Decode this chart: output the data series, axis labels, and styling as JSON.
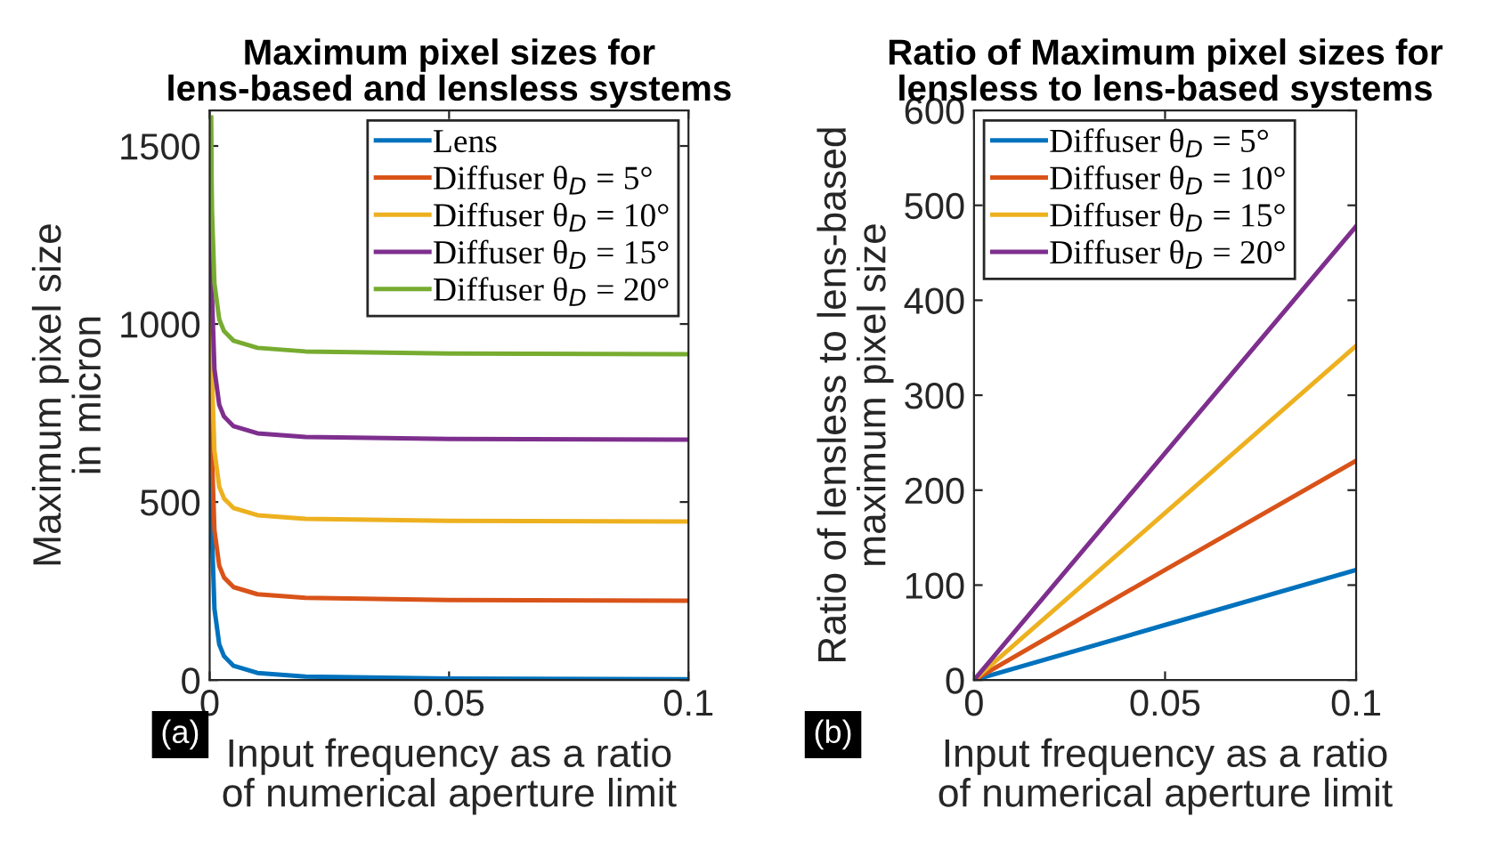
{
  "chart_data": [
    {
      "type": "line",
      "title": "Maximum pixel sizes for\nlens-based and lensless systems",
      "xlabel": "Input frequency as a ratio\nof numerical aperture limit",
      "ylabel": "Maximum pixel size\nin micron",
      "xlim": [
        0,
        0.1
      ],
      "xticks": [
        0,
        0.05,
        0.1
      ],
      "ylim": [
        0,
        1600
      ],
      "yticks": [
        0,
        500,
        1000,
        1500
      ],
      "grid": false,
      "legend": "top right",
      "annotations": [
        "(a)"
      ],
      "series": [
        {
          "name": "Lens",
          "color": "#0072bd",
          "x": [
            0.0003,
            0.0005,
            0.001,
            0.002,
            0.003,
            0.005,
            0.01,
            0.02,
            0.05,
            0.1
          ],
          "values": [
            667,
            400,
            200,
            100,
            67,
            40,
            20,
            10,
            4,
            2
          ]
        },
        {
          "name": "Diffuser θ$_{D}$ = 5°",
          "color": "#d95319",
          "x": [
            0.00015,
            0.0002,
            0.0003,
            0.0005,
            0.001,
            0.002,
            0.003,
            0.005,
            0.01,
            0.02,
            0.05,
            0.1
          ],
          "values": [
            1555,
            1221,
            888,
            621,
            421,
            321,
            288,
            261,
            241,
            231,
            225,
            223
          ]
        },
        {
          "name": "Diffuser θ$_{D}$ = 10°",
          "color": "#edb120",
          "x": [
            0.0003,
            0.0005,
            0.001,
            0.002,
            0.003,
            0.005,
            0.01,
            0.02,
            0.05,
            0.1
          ],
          "values": [
            1110,
            843,
            643,
            543,
            510,
            483,
            463,
            453,
            447,
            445
          ]
        },
        {
          "name": "Diffuser θ$_{D}$ = 15°",
          "color": "#7e2f8e",
          "x": [
            0.00022,
            0.0003,
            0.0005,
            0.001,
            0.002,
            0.003,
            0.005,
            0.01,
            0.02,
            0.05,
            0.1
          ],
          "values": [
            1579,
            1340,
            1073,
            873,
            773,
            740,
            713,
            693,
            683,
            677,
            675
          ]
        },
        {
          "name": "Diffuser θ$_{D}$ = 20°",
          "color": "#77ac30",
          "x": [
            0.0003,
            0.0004,
            0.0005,
            0.001,
            0.002,
            0.003,
            0.005,
            0.01,
            0.02,
            0.05,
            0.1
          ],
          "values": [
            1580,
            1413,
            1313,
            1113,
            1013,
            980,
            953,
            933,
            923,
            917,
            915
          ]
        }
      ]
    },
    {
      "type": "line",
      "title": "Ratio of Maximum pixel sizes for\nlensless to lens-based systems",
      "xlabel": "Input frequency as a ratio\nof numerical aperture limit",
      "ylabel": "Ratio of lensless to lens-based\nmaximum pixel size",
      "xlim": [
        0,
        0.1
      ],
      "xticks": [
        0,
        0.05,
        0.1
      ],
      "ylim": [
        0,
        600
      ],
      "yticks": [
        0,
        100,
        200,
        300,
        400,
        500,
        600
      ],
      "grid": false,
      "legend": "top left",
      "annotations": [
        "(b)"
      ],
      "series": [
        {
          "name": "Diffuser θ$_{D}$ = 5°",
          "color": "#0072bd",
          "x": [
            0,
            0.05,
            0.1
          ],
          "values": [
            0,
            58,
            116
          ]
        },
        {
          "name": "Diffuser θ$_{D}$ = 10°",
          "color": "#d95319",
          "x": [
            0,
            0.05,
            0.1
          ],
          "values": [
            0,
            116,
            231
          ]
        },
        {
          "name": "Diffuser θ$_{D}$ = 15°",
          "color": "#edb120",
          "x": [
            0,
            0.05,
            0.1
          ],
          "values": [
            0,
            176,
            352
          ]
        },
        {
          "name": "Diffuser θ$_{D}$ = 20°",
          "color": "#7e2f8e",
          "x": [
            0,
            0.05,
            0.1
          ],
          "values": [
            0,
            239,
            478
          ]
        }
      ]
    }
  ]
}
